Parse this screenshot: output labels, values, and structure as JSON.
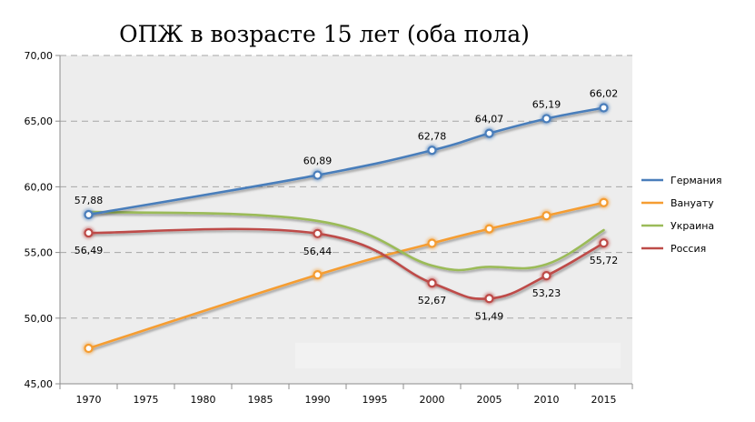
{
  "chart_data": {
    "type": "line",
    "title": "ОПЖ в возрасте 15 лет (оба пола)",
    "xlabel": "",
    "ylabel": "",
    "categories": [
      "1970",
      "1975",
      "1980",
      "1985",
      "1990",
      "1995",
      "2000",
      "2005",
      "2010",
      "2015"
    ],
    "ylim": [
      45,
      70
    ],
    "yticks": [
      45,
      50,
      55,
      60,
      65,
      70
    ],
    "ytick_labels": [
      "45,00",
      "50,00",
      "55,00",
      "60,00",
      "65,00",
      "70,00"
    ],
    "grid": true,
    "legend_position": "right",
    "series": [
      {
        "name": "Германия",
        "color": "#4a7ebb",
        "x": [
          "1970",
          "1990",
          "2000",
          "2005",
          "2010",
          "2015"
        ],
        "values": [
          57.88,
          60.89,
          62.78,
          64.07,
          65.19,
          66.02
        ],
        "labels": [
          "57,88",
          "60,89",
          "62,78",
          "64,07",
          "65,19",
          "66,02"
        ],
        "label_side": "above"
      },
      {
        "name": "Вануату",
        "color": "#f59d32",
        "x": [
          "1970",
          "1990",
          "2000",
          "2005",
          "2010",
          "2015"
        ],
        "values": [
          47.7,
          53.3,
          55.7,
          56.8,
          57.8,
          58.8
        ],
        "labels": [],
        "label_side": "none"
      },
      {
        "name": "Украина",
        "color": "#9bbb59",
        "x": [
          "1970",
          "1990",
          "2000",
          "2005",
          "2010",
          "2015"
        ],
        "values": [
          58.1,
          57.4,
          54.0,
          53.9,
          54.1,
          56.7
        ],
        "labels": [],
        "label_side": "none",
        "markers": false
      },
      {
        "name": "Россия",
        "color": "#be4b48",
        "x": [
          "1970",
          "1990",
          "2000",
          "2005",
          "2010",
          "2015"
        ],
        "values": [
          56.49,
          56.44,
          52.67,
          51.49,
          53.23,
          55.72
        ],
        "labels": [
          "56,49",
          "56,44",
          "52,67",
          "51,49",
          "53,23",
          "55,72"
        ],
        "label_side": "below"
      }
    ]
  }
}
